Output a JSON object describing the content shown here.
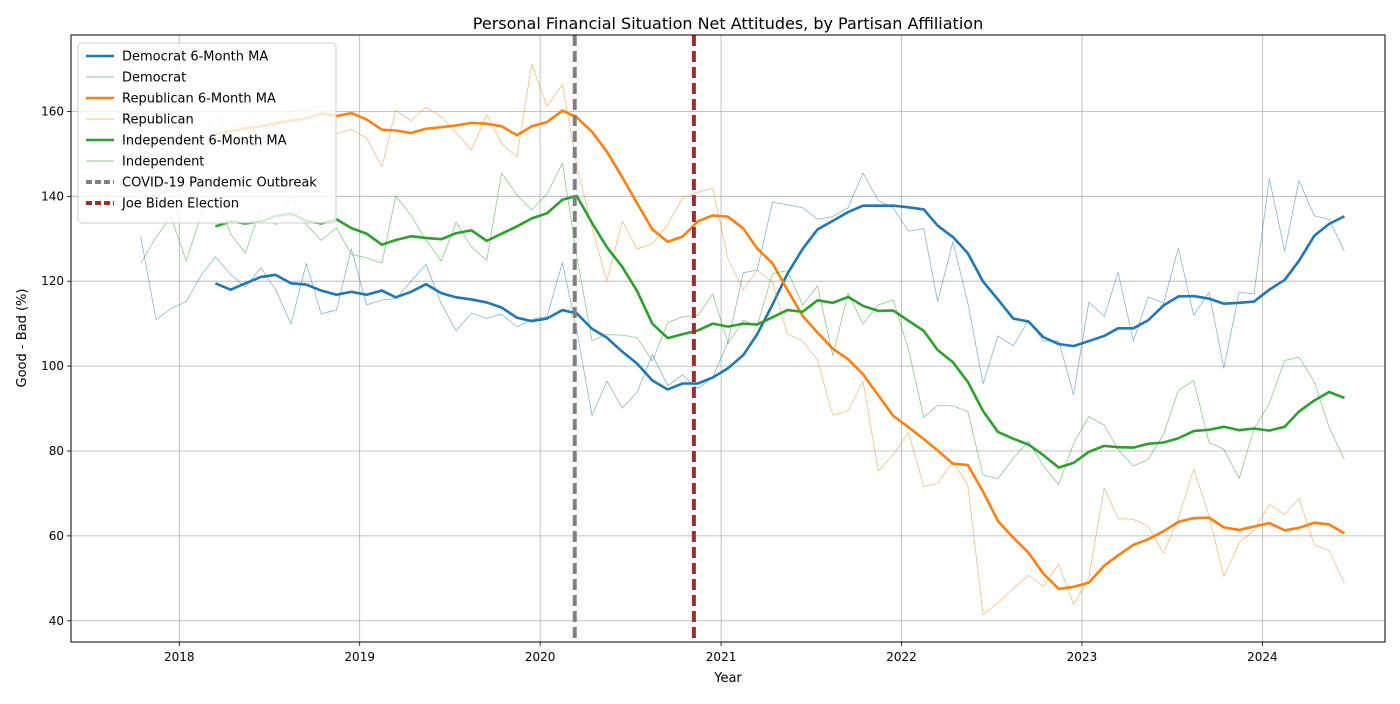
{
  "chart_data": {
    "type": "line",
    "title": "Personal Financial Situation Net Attitudes, by Partisan Affiliation",
    "xlabel": "Year",
    "ylabel": "Good - Bad (%)",
    "xlim": [
      "2017-05-27",
      "2024-09-05"
    ],
    "ylim": [
      35,
      178
    ],
    "x_ticks": [
      {
        "date": "2018-01-01",
        "label": "2018"
      },
      {
        "date": "2019-01-01",
        "label": "2019"
      },
      {
        "date": "2020-01-01",
        "label": "2020"
      },
      {
        "date": "2021-01-01",
        "label": "2021"
      },
      {
        "date": "2022-01-01",
        "label": "2022"
      },
      {
        "date": "2023-01-01",
        "label": "2023"
      },
      {
        "date": "2024-01-01",
        "label": "2024"
      }
    ],
    "y_ticks": [
      40,
      60,
      80,
      100,
      120,
      140,
      160
    ],
    "grid": true,
    "legend_placement": "top-left",
    "x": [
      "2017-10",
      "2017-11",
      "2017-12",
      "2018-01",
      "2018-02",
      "2018-03",
      "2018-04",
      "2018-05",
      "2018-06",
      "2018-07",
      "2018-08",
      "2018-09",
      "2018-10",
      "2018-11",
      "2018-12",
      "2019-01",
      "2019-02",
      "2019-03",
      "2019-04",
      "2019-05",
      "2019-06",
      "2019-07",
      "2019-08",
      "2019-09",
      "2019-10",
      "2019-11",
      "2019-12",
      "2020-01",
      "2020-02",
      "2020-03",
      "2020-04",
      "2020-05",
      "2020-06",
      "2020-07",
      "2020-08",
      "2020-09",
      "2020-10",
      "2020-11",
      "2020-12",
      "2021-01",
      "2021-02",
      "2021-03",
      "2021-04",
      "2021-05",
      "2021-06",
      "2021-07",
      "2021-08",
      "2021-09",
      "2021-10",
      "2021-11",
      "2021-12",
      "2022-01",
      "2022-02",
      "2022-03",
      "2022-04",
      "2022-05",
      "2022-06",
      "2022-07",
      "2022-08",
      "2022-09",
      "2022-10",
      "2022-11",
      "2022-12",
      "2023-01",
      "2023-02",
      "2023-03",
      "2023-04",
      "2023-05",
      "2023-06",
      "2023-07",
      "2023-08",
      "2023-09",
      "2023-10",
      "2023-11",
      "2023-12",
      "2024-01",
      "2024-02",
      "2024-03",
      "2024-04",
      "2024-05",
      "2024-06"
    ],
    "series": [
      {
        "name": "Democrat 6-Month MA",
        "color": "#1f77b4",
        "width": 2.6,
        "opacity": 1,
        "dash": "",
        "values": [
          null,
          null,
          null,
          null,
          null,
          119.5,
          118.0,
          119.5,
          121.0,
          121.5,
          119.5,
          119.2,
          117.8,
          116.8,
          117.5,
          116.8,
          117.8,
          116.2,
          117.5,
          119.3,
          117.2,
          116.2,
          115.7,
          115.0,
          113.8,
          111.4,
          110.6,
          111.2,
          113.2,
          112.4,
          108.8,
          106.7,
          103.4,
          100.6,
          96.6,
          94.5,
          95.9,
          95.9,
          97.3,
          99.5,
          102.6,
          107.5,
          114.5,
          121.7,
          127.6,
          132.2,
          134.2,
          136.3,
          137.8,
          137.8,
          137.8,
          137.4,
          136.9,
          133.1,
          130.4,
          126.6,
          119.9,
          115.7,
          111.2,
          110.5,
          106.8,
          105.2,
          104.7,
          105.9,
          107.1,
          108.9,
          108.9,
          110.8,
          114.3,
          116.4,
          116.5,
          115.9,
          114.7,
          114.9,
          115.2,
          118.0,
          120.3,
          124.8,
          130.7,
          133.5,
          135.3
        ]
      },
      {
        "name": "Democrat",
        "color": "#1f77b4",
        "width": 0.8,
        "opacity": 0.55,
        "dash": "",
        "values": [
          130.6,
          110.9,
          113.5,
          115.2,
          121.5,
          125.7,
          121.6,
          118.6,
          123.2,
          118.0,
          109.9,
          124.2,
          112.3,
          113.2,
          127.6,
          114.4,
          115.6,
          115.9,
          120.0,
          124.0,
          114.7,
          108.3,
          112.5,
          111.2,
          112.3,
          109.2,
          111.0,
          111.7,
          124.4,
          108.4,
          88.3,
          96.5,
          90.1,
          93.8,
          102.7,
          95.4,
          97.9,
          94.7,
          97.3,
          105.7,
          122.0,
          122.6,
          138.6,
          138.0,
          137.3,
          134.6,
          135.2,
          137.3,
          145.5,
          139.0,
          137.3,
          131.8,
          132.4,
          115.2,
          129.3,
          115.0,
          95.8,
          107.1,
          104.8,
          110.8,
          105.9,
          105.9,
          93.3,
          115.1,
          111.7,
          122.1,
          105.9,
          116.3,
          114.8,
          127.8,
          112.0,
          117.4,
          99.5,
          117.4,
          117.0,
          144.2,
          127.0,
          143.7,
          135.4,
          134.6,
          127.0
        ]
      },
      {
        "name": "Republican 6-Month MA",
        "color": "#ff7f0e",
        "width": 2.6,
        "opacity": 1,
        "dash": "",
        "values": [
          null,
          null,
          null,
          null,
          null,
          154.6,
          155.3,
          156.0,
          156.5,
          157.2,
          157.8,
          158.4,
          159.5,
          158.9,
          159.6,
          158.1,
          155.7,
          155.5,
          154.9,
          155.9,
          156.3,
          156.7,
          157.3,
          157.1,
          156.5,
          154.4,
          156.5,
          157.5,
          160.2,
          158.6,
          155.2,
          150.5,
          144.5,
          138.4,
          132.2,
          129.3,
          130.5,
          134.1,
          135.5,
          135.2,
          132.4,
          127.7,
          124.2,
          118.0,
          111.8,
          107.9,
          104.1,
          101.6,
          98.1,
          93.1,
          88.3,
          85.6,
          82.8,
          80.1,
          77.0,
          76.7,
          70.4,
          63.5,
          59.6,
          56.0,
          51.1,
          47.5,
          48.0,
          49.0,
          53.0,
          55.4,
          57.9,
          59.2,
          61.1,
          63.3,
          64.2,
          64.3,
          62.0,
          61.4,
          62.2,
          63.0,
          61.3,
          61.9,
          63.1,
          62.7,
          60.6
        ]
      },
      {
        "name": "Republican",
        "color": "#ff7f0e",
        "width": 0.8,
        "opacity": 0.55,
        "dash": "",
        "values": [
          140.8,
          137.6,
          154.3,
          153.6,
          155.6,
          159.0,
          156.0,
          157.3,
          153.9,
          157.1,
          160.3,
          160.4,
          161.4,
          154.7,
          155.8,
          153.7,
          146.9,
          160.3,
          157.8,
          161.0,
          158.8,
          155.0,
          150.9,
          159.3,
          152.4,
          149.3,
          171.2,
          161.2,
          166.3,
          147.3,
          132.6,
          120.0,
          134.2,
          127.6,
          128.8,
          133.4,
          139.6,
          141.0,
          141.9,
          125.2,
          118.0,
          122.6,
          119.8,
          107.5,
          106.0,
          101.4,
          88.4,
          89.5,
          96.4,
          75.3,
          79.1,
          84.4,
          71.6,
          72.4,
          77.5,
          72.0,
          41.4,
          44.2,
          47.6,
          50.7,
          48.1,
          53.4,
          43.8,
          50.3,
          71.3,
          64.1,
          63.9,
          62.2,
          55.9,
          64.2,
          75.8,
          64.7,
          50.4,
          58.4,
          61.3,
          67.4,
          65.0,
          68.8,
          57.9,
          56.5,
          48.8
        ]
      },
      {
        "name": "Independent 6-Month MA",
        "color": "#2ca02c",
        "width": 2.6,
        "opacity": 1,
        "dash": "",
        "values": [
          null,
          null,
          null,
          null,
          null,
          132.9,
          134.1,
          133.6,
          134.1,
          135.3,
          135.9,
          134.2,
          133.6,
          134.6,
          132.5,
          131.2,
          128.6,
          129.7,
          130.6,
          130.2,
          129.9,
          131.3,
          132.0,
          129.5,
          131.2,
          132.9,
          134.8,
          136.0,
          139.2,
          140.1,
          133.7,
          128.0,
          123.4,
          117.7,
          110.0,
          106.6,
          107.5,
          108.4,
          110.0,
          109.3,
          110.0,
          109.8,
          111.5,
          113.2,
          112.8,
          115.5,
          114.9,
          116.3,
          114.2,
          113.0,
          113.1,
          110.7,
          108.3,
          103.8,
          100.9,
          96.3,
          89.4,
          84.5,
          82.9,
          81.5,
          79.0,
          76.1,
          77.2,
          79.8,
          81.2,
          80.9,
          80.8,
          81.7,
          82.0,
          83.0,
          84.7,
          85.0,
          85.7,
          84.9,
          85.3,
          84.8,
          85.7,
          89.3,
          91.9,
          93.9,
          92.5
        ]
      },
      {
        "name": "Independent",
        "color": "#2ca02c",
        "width": 0.8,
        "opacity": 0.55,
        "dash": "",
        "values": [
          124.2,
          130.3,
          135.3,
          124.8,
          135.8,
          140.1,
          131.1,
          126.6,
          137.4,
          133.2,
          140.0,
          133.4,
          129.6,
          132.6,
          126.3,
          125.5,
          124.3,
          140.1,
          135.5,
          129.7,
          124.7,
          133.9,
          128.1,
          124.9,
          145.5,
          140.3,
          136.8,
          140.6,
          147.8,
          126.0,
          106.0,
          107.4,
          107.3,
          106.7,
          101.2,
          110.2,
          111.6,
          111.9,
          117.0,
          105.3,
          110.8,
          109.4,
          121.8,
          122.5,
          114.4,
          118.9,
          102.5,
          117.2,
          109.9,
          114.4,
          115.6,
          104.0,
          87.9,
          90.8,
          90.6,
          89.3,
          74.3,
          73.5,
          78.3,
          82.3,
          76.5,
          72.1,
          81.8,
          88.1,
          86.1,
          80.3,
          76.5,
          78.0,
          83.9,
          94.3,
          96.6,
          82.0,
          80.4,
          73.5,
          85.2,
          91.2,
          101.3,
          102.1,
          96.3,
          85.6,
          78.0
        ]
      },
      {
        "name": "COVID-19 Pandemic Outbreak",
        "color": "#808080",
        "width": 4,
        "opacity": 1,
        "dash": "11,5",
        "vline": "2020-03-11"
      },
      {
        "name": "Joe Biden Election",
        "color": "#a52a2a",
        "width": 4,
        "opacity": 1,
        "dash": "11,5",
        "vline": "2020-11-07"
      }
    ]
  }
}
